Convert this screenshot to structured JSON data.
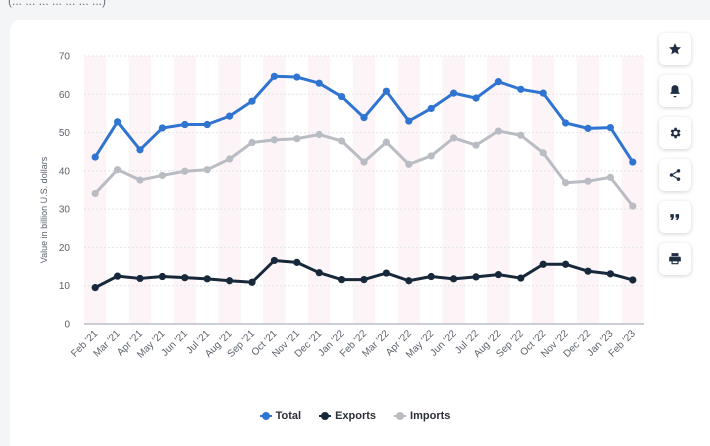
{
  "header_fragment": "(... ... ... ... ... ... ...)",
  "icons": [
    "star-icon",
    "bell-icon",
    "gear-icon",
    "share-icon",
    "quote-icon",
    "print-icon"
  ],
  "colors": {
    "total": "#2f74d0",
    "exports": "#17283a",
    "imports": "#b9bcc2",
    "grid": "#dfe3e8",
    "band": "#fcf4f6"
  },
  "chart_data": {
    "type": "line",
    "ylabel": "Value in billion U.S. dollars",
    "xlabel": "",
    "ylim": [
      0,
      70
    ],
    "yticks": [
      0,
      10,
      20,
      30,
      40,
      50,
      60,
      70
    ],
    "grid": true,
    "legend_position": "bottom-center",
    "categories": [
      "Feb '21",
      "Mar '21",
      "Apr '21",
      "May '21",
      "Jun '21",
      "Jul '21",
      "Aug '21",
      "Sep '21",
      "Oct '21",
      "Nov '21",
      "Dec '21",
      "Jan '22",
      "Feb '22",
      "Mar '22",
      "Apr '22",
      "May '22",
      "Jun '22",
      "Jul '22",
      "Aug '22",
      "Sep '22",
      "Oct '22",
      "Nov '22",
      "Dec '22",
      "Jan '23",
      "Feb '23"
    ],
    "series": [
      {
        "name": "Total",
        "key": "total",
        "values": [
          43.6,
          52.8,
          45.5,
          51.2,
          52.1,
          52.1,
          54.3,
          58.2,
          64.7,
          64.5,
          62.9,
          59.4,
          53.9,
          60.8,
          53.0,
          56.3,
          60.3,
          59.0,
          63.3,
          61.3,
          60.3,
          52.5,
          51.1,
          51.3,
          42.3
        ]
      },
      {
        "name": "Exports",
        "key": "exports",
        "values": [
          9.5,
          12.5,
          11.9,
          12.4,
          12.1,
          11.8,
          11.3,
          10.9,
          16.6,
          16.1,
          13.4,
          11.6,
          11.6,
          13.3,
          11.3,
          12.4,
          11.8,
          12.3,
          12.9,
          12.0,
          15.6,
          15.6,
          13.8,
          13.1,
          11.5
        ]
      },
      {
        "name": "Imports",
        "key": "imports",
        "values": [
          34.1,
          40.3,
          37.6,
          38.8,
          39.9,
          40.3,
          43.1,
          47.4,
          48.1,
          48.4,
          49.5,
          47.8,
          42.3,
          47.5,
          41.7,
          43.9,
          48.6,
          46.7,
          50.4,
          49.3,
          44.7,
          36.9,
          37.3,
          38.3,
          30.8
        ]
      }
    ]
  }
}
